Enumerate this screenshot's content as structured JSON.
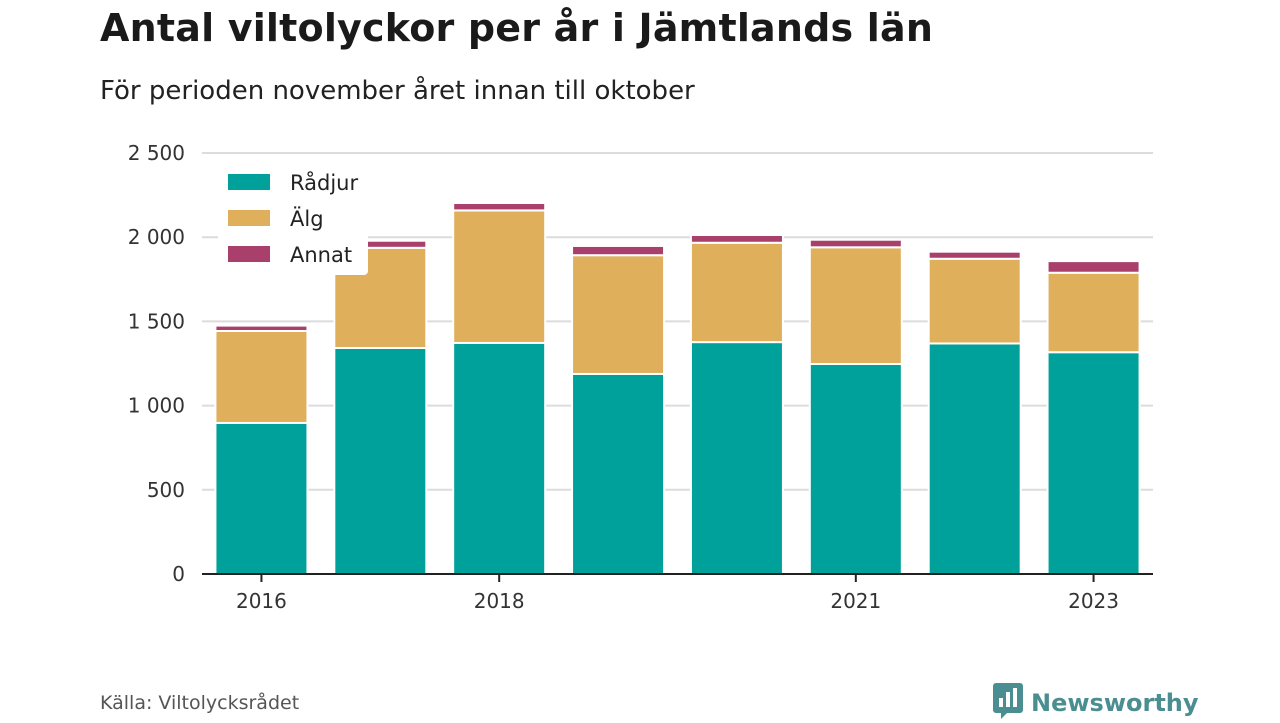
{
  "title": "Antal viltolyckor per år i Jämtlands län",
  "subtitle": "För perioden november året innan till oktober",
  "source": "Källa: Viltolycksrådet",
  "brand": {
    "name": "Newsworthy",
    "icon": "newsworthy-logo-icon",
    "color": "#4a8e92"
  },
  "chart_data": {
    "type": "bar",
    "stacked": true,
    "categories": [
      "2016",
      "2017",
      "2018",
      "2019",
      "2020",
      "2021",
      "2022",
      "2023"
    ],
    "x_tick_labels": [
      "2016",
      "",
      "2018",
      "",
      "",
      "2021",
      "",
      "2023"
    ],
    "series": [
      {
        "name": "Rådjur",
        "color": "#00a19a",
        "values": [
          897,
          1342,
          1372,
          1188,
          1377,
          1247,
          1369,
          1317
        ]
      },
      {
        "name": "Älg",
        "color": "#dfaf5c",
        "values": [
          546,
          595,
          787,
          705,
          590,
          693,
          503,
          472
        ]
      },
      {
        "name": "Annat",
        "color": "#a93f6b",
        "values": [
          32,
          42,
          44,
          55,
          46,
          45,
          42,
          69
        ]
      }
    ],
    "ylim": [
      0,
      2500
    ],
    "yticks": [
      0,
      500,
      1000,
      1500,
      2000,
      2500
    ],
    "ytick_labels": [
      "0",
      "500",
      "1 000",
      "1 500",
      "2 000",
      "2 500"
    ],
    "xlabel": "",
    "ylabel": "",
    "grid": true,
    "legend_position": "top-left"
  }
}
